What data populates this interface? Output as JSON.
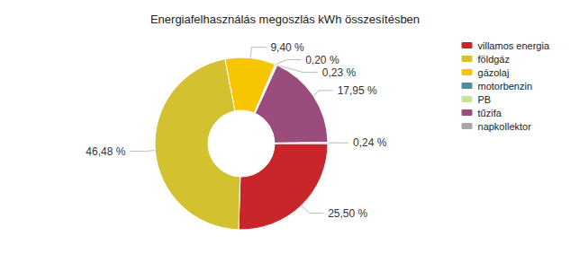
{
  "chart_data": {
    "type": "pie",
    "title": "Energiafelhasználás megoszlás kWh összesítésben",
    "categories": [
      "villamos energia",
      "földgáz",
      "gázolaj",
      "motorbenzin",
      "PB",
      "tűzifa",
      "napkollektor"
    ],
    "values": [
      25.5,
      46.48,
      9.4,
      0.2,
      0.23,
      17.95,
      0.24
    ],
    "value_labels": [
      "25,50 %",
      "46,48 %",
      "9,40 %",
      "0,20 %",
      "0,23 %",
      "17,95 %",
      "0,24 %"
    ],
    "colors": [
      "#c9262b",
      "#d4c130",
      "#f7c600",
      "#4f8f98",
      "#c5e596",
      "#9a4c7d",
      "#a9a9a9"
    ],
    "data_labels": true,
    "legend": "top-right"
  }
}
